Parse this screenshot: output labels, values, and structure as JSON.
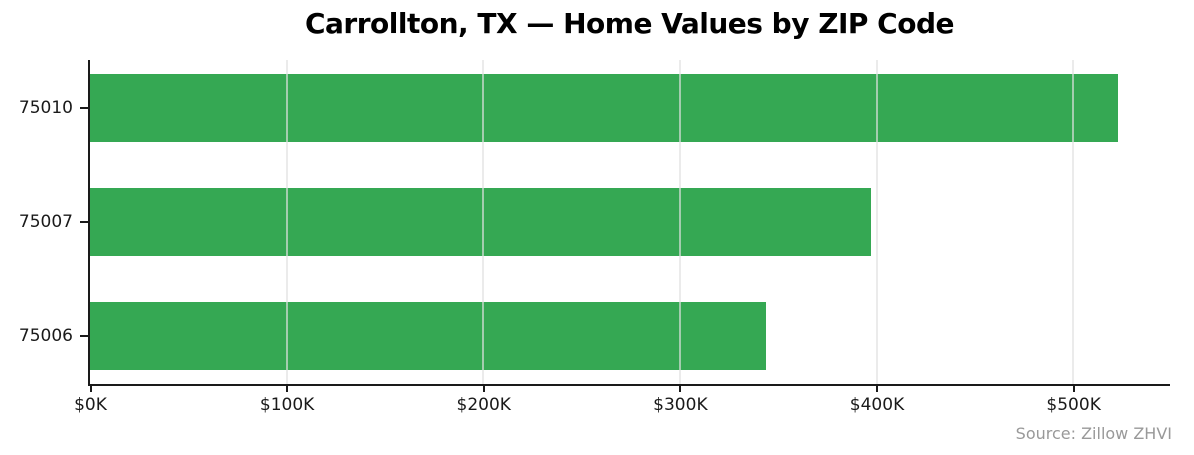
{
  "chart_data": {
    "type": "bar",
    "orientation": "horizontal",
    "title": "Carrollton, TX — Home Values by ZIP Code",
    "categories": [
      "75010",
      "75007",
      "75006"
    ],
    "values": [
      523000,
      397000,
      344000
    ],
    "x_tick_labels": [
      "$0K",
      "$100K",
      "$200K",
      "$300K",
      "$400K",
      "$500K"
    ],
    "x_tick_values": [
      0,
      100000,
      200000,
      300000,
      400000,
      500000
    ],
    "xlim": [
      0,
      549000
    ],
    "xlabel": "",
    "ylabel": "",
    "grid": "vertical gridlines at x ticks, drawn over bars",
    "legend": "none",
    "bar_color": "#35a853",
    "gridline_color": "rgba(225,225,225,0.65)",
    "axis_color": "#1a1a1a",
    "text_color": "#1a1a1a",
    "source_note": "Source: Zillow ZHVI",
    "source_color": "#999999"
  }
}
